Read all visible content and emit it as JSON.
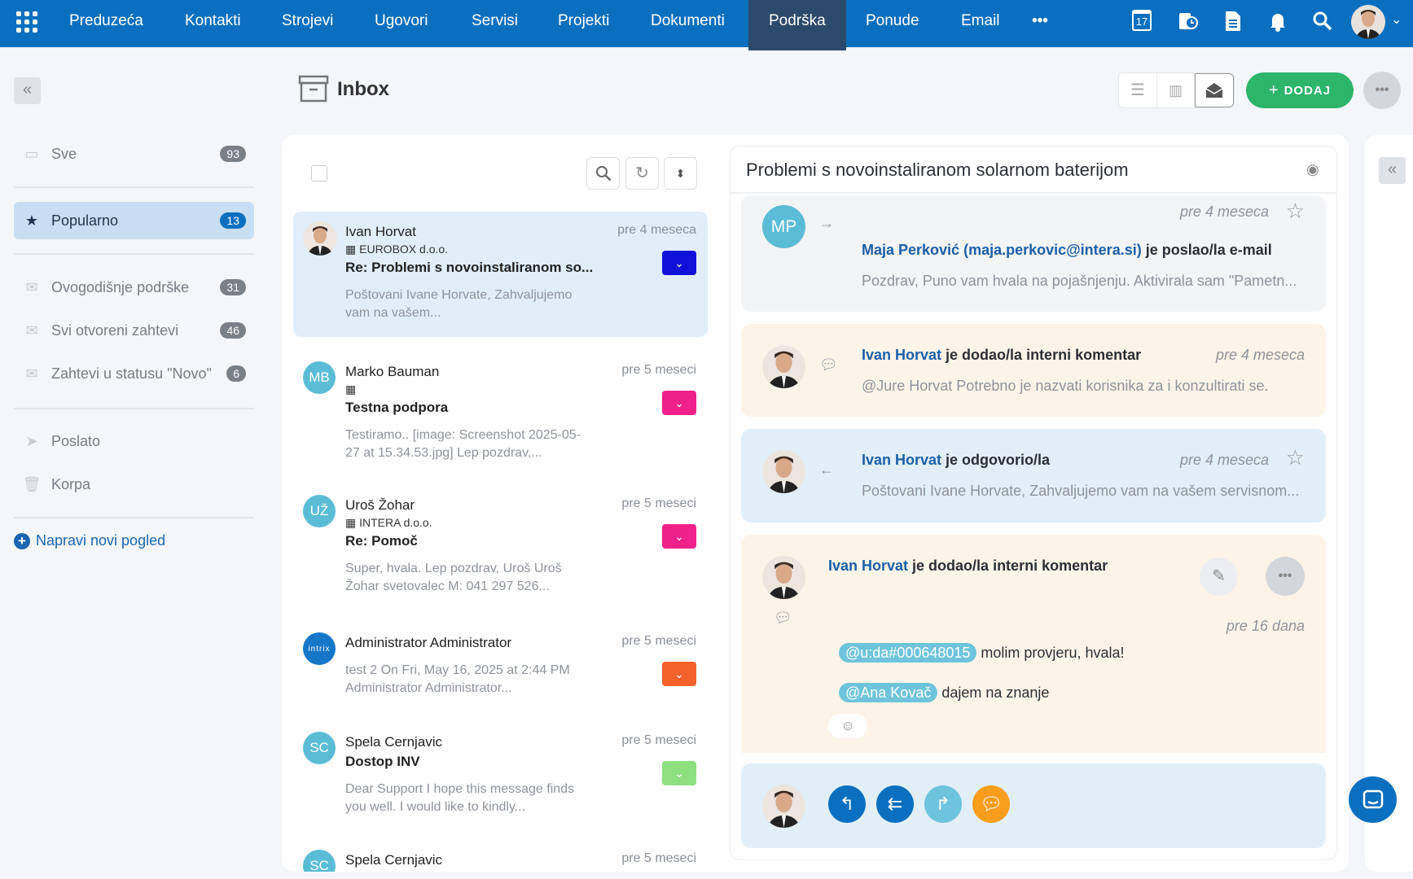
{
  "nav": {
    "items": [
      "Preduzeća",
      "Kontakti",
      "Strojevi",
      "Ugovori",
      "Servisi",
      "Projekti",
      "Dokumenti",
      "Podrška",
      "Ponude",
      "Email"
    ],
    "active": "Podrška",
    "more": "•••",
    "calendar_day": "17"
  },
  "colors": {
    "topbar": "#0b6fbf",
    "active_nav": "#2b4a6c",
    "accent": "#0b6fbf",
    "add_button": "#2db56a"
  },
  "sidebar": {
    "items": [
      {
        "label": "Sve",
        "count": "93",
        "icon": "inbox-icon"
      },
      {
        "label": "Popularno",
        "count": "13",
        "icon": "star-icon",
        "active": true
      },
      {
        "label": "Ovogodišnje podrške",
        "count": "31",
        "icon": "envelope-icon"
      },
      {
        "label": "Svi otvoreni zahtevi",
        "count": "46",
        "icon": "envelope-icon"
      },
      {
        "label": "Zahtevi u statusu \"Novo\"",
        "count": "6",
        "icon": "envelope-icon"
      },
      {
        "label": "Poslato",
        "icon": "send-icon"
      },
      {
        "label": "Korpa",
        "icon": "trash-icon"
      }
    ],
    "create_view": "Napravi novi pogled"
  },
  "header": {
    "title": "Inbox",
    "add_label": "DODAJ",
    "more": "•••"
  },
  "list": {
    "items": [
      {
        "name": "Ivan Horvat",
        "time": "pre 4 meseca",
        "company": "EUROBOX d.o.o.",
        "subject": "Re: Problemi s novoinstaliranom so...",
        "preview": "Poštovani Ivane Horvate, Zahvaljujemo vam na vašem...",
        "tag_color": "#1010d8"
      },
      {
        "name": "Marko Bauman",
        "initials": "MB",
        "time": "pre 5 meseci",
        "company": "",
        "subject": "Testna podpora",
        "preview": "Testiramo.. [image: Screenshot 2025-05-27 at 15.34.53.jpg] Lep pozdrav,...",
        "tag_color": "#f0208a"
      },
      {
        "name": "Uroš Žohar",
        "initials": "UŽ",
        "time": "pre 5 meseci",
        "company": "INTERA d.o.o.",
        "subject": "Re: Pomoč",
        "preview": "Super, hvala. Lep pozdrav, Uroš Uroš Žohar svetovalec M: 041 297 526...",
        "tag_color": "#f0208a"
      },
      {
        "name": "Administrator Administrator",
        "initials": "intrix",
        "time": "pre 5 meseci",
        "preview": "test 2   On Fri, May 16, 2025 at 2:44 PM Administrator Administrator...",
        "tag_color": "#f4622c"
      },
      {
        "name": "Spela Cernjavic",
        "initials": "SC",
        "time": "pre 5 meseci",
        "subject": "Dostop INV",
        "preview": "Dear Support I hope this message finds you well. I would like to kindly...",
        "tag_color": "#8ee07e"
      },
      {
        "name": "Spela Cernjavic",
        "initials": "SC",
        "time": "pre 5 meseci"
      }
    ]
  },
  "detail": {
    "title": "Problemi s novoinstaliranom solarnom baterijom",
    "entries": [
      {
        "initials": "MP",
        "time": "pre 4 meseca",
        "actor": "Maja Perković (maja.perkovic@intera.si)",
        "action": " je poslao/la e-mail",
        "text": "Pozdrav, Puno vam hvala na pojašnjenju. Aktivirala sam \"Pametn..."
      },
      {
        "actor": "Ivan Horvat",
        "action": " je dodao/la interni komentar",
        "time": "pre 4 meseca",
        "text": "@Jure Horvat  Potrebno je nazvati korisnika za i konzultirati se."
      },
      {
        "actor": "Ivan Horvat",
        "action": " je odgovorio/la",
        "time": "pre 4 meseca",
        "text": "Poštovani Ivane Horvate, Zahvaljujemo vam na vašem servisnom..."
      },
      {
        "actor": "Ivan Horvat",
        "action": " je dodao/la interni komentar",
        "time": "pre 16 dana",
        "mention1": "@u:da#000648015",
        "line1": " molim provjeru, hvala!",
        "mention2": "@Ana Kovač",
        "line2": " dajem na znanje"
      }
    ]
  }
}
